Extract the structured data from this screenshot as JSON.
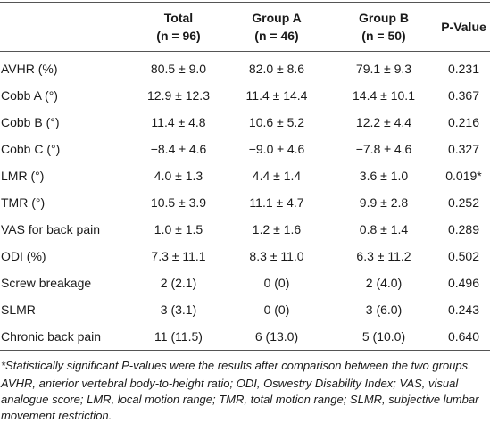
{
  "table": {
    "columns": [
      {
        "label": "",
        "sub": ""
      },
      {
        "label": "Total",
        "sub": "(n = 96)"
      },
      {
        "label": "Group A",
        "sub": "(n = 46)"
      },
      {
        "label": "Group B",
        "sub": "(n = 50)"
      },
      {
        "label": "P-Value",
        "sub": ""
      }
    ],
    "rows": [
      [
        "AVHR (%)",
        "80.5 ± 9.0",
        "82.0 ± 8.6",
        "79.1 ± 9.3",
        "0.231"
      ],
      [
        "Cobb A (°)",
        "12.9 ± 12.3",
        "11.4 ± 14.4",
        "14.4 ± 10.1",
        "0.367"
      ],
      [
        "Cobb B (°)",
        "11.4 ± 4.8",
        "10.6 ± 5.2",
        "12.2 ± 4.4",
        "0.216"
      ],
      [
        "Cobb C (°)",
        "−8.4 ± 4.6",
        "−9.0 ± 4.6",
        "−7.8 ± 4.6",
        "0.327"
      ],
      [
        "LMR (°)",
        "4.0 ± 1.3",
        "4.4 ± 1.4",
        "3.6 ± 1.0",
        "0.019*"
      ],
      [
        "TMR (°)",
        "10.5 ± 3.9",
        "11.1 ± 4.7",
        "9.9 ± 2.8",
        "0.252"
      ],
      [
        "VAS for back pain",
        "1.0 ± 1.5",
        "1.2 ± 1.6",
        "0.8 ± 1.4",
        "0.289"
      ],
      [
        "ODI (%)",
        "7.3 ± 11.1",
        "8.3 ± 11.0",
        "6.3 ± 11.2",
        "0.502"
      ],
      [
        "Screw breakage",
        "2 (2.1)",
        "0 (0)",
        "2 (4.0)",
        "0.496"
      ],
      [
        "SLMR",
        "3 (3.1)",
        "0 (0)",
        "3 (6.0)",
        "0.243"
      ],
      [
        "Chronic back pain",
        "11 (11.5)",
        "6 (13.0)",
        "5 (10.0)",
        "0.640"
      ]
    ]
  },
  "footnotes": [
    "*Statistically significant P-values were the results after comparison between the two groups.",
    "AVHR, anterior vertebral body-to-height ratio; ODI, Oswestry Disability Index; VAS, visual analogue score; LMR, local motion range; TMR, total motion range; SLMR, subjective lumbar movement restriction."
  ]
}
